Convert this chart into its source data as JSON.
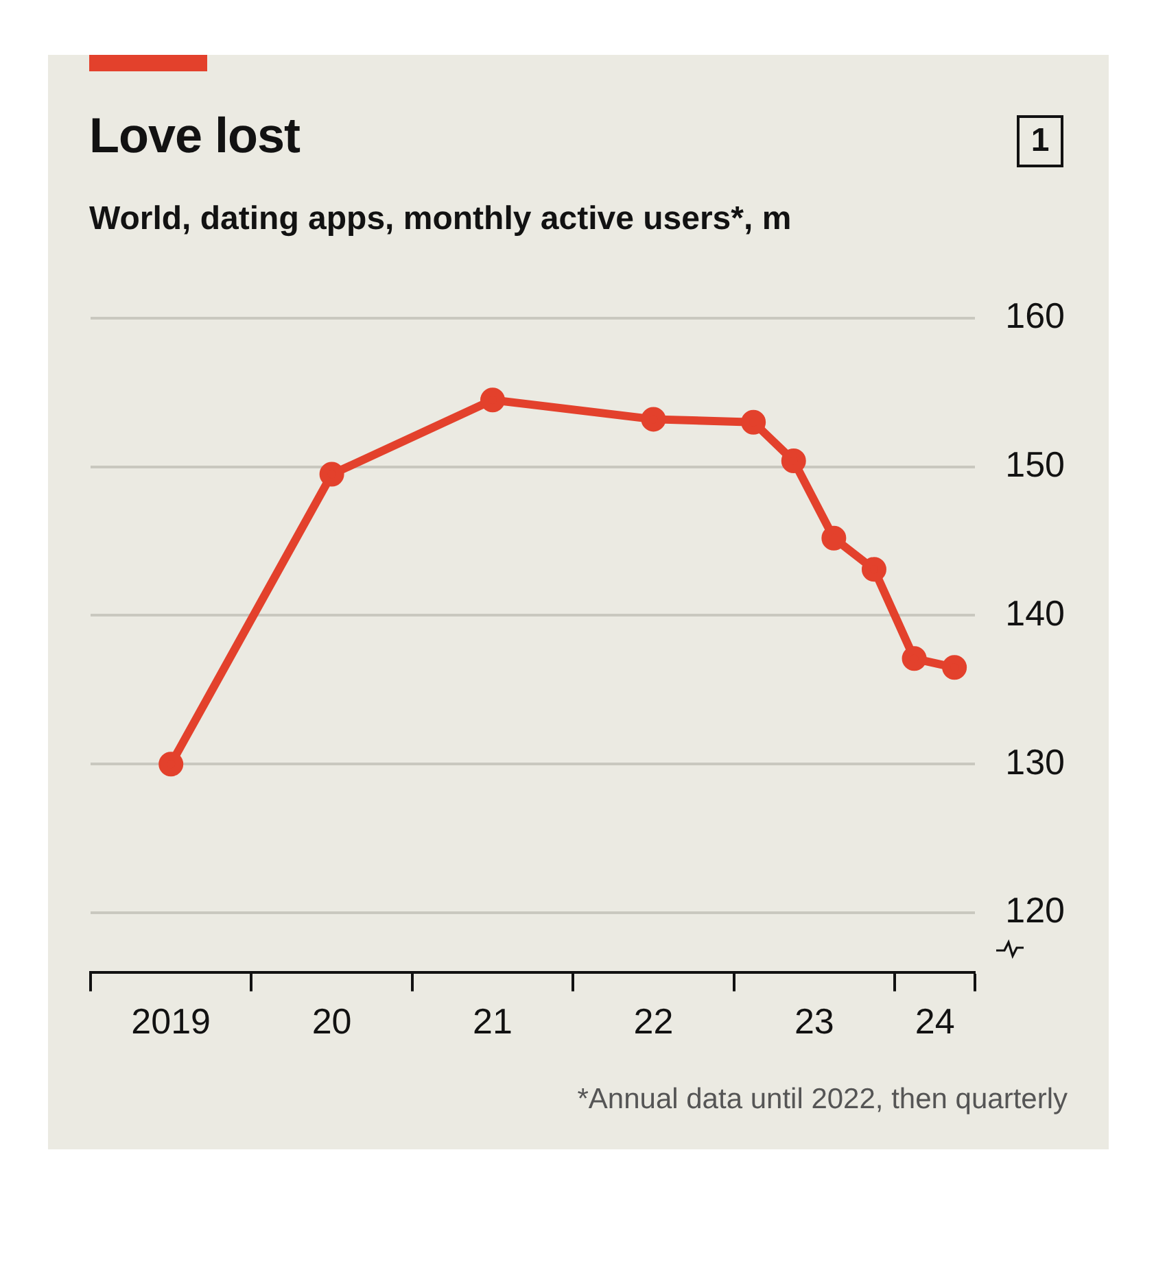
{
  "chart_data": {
    "type": "line",
    "title": "Love lost",
    "subtitle": "World, dating apps, monthly active users*, m",
    "x": [
      "2019-07",
      "2020-07",
      "2021-07",
      "2022-07",
      "2023-02-15",
      "2023-05-15",
      "2023-08-15",
      "2023-11-15",
      "2024-02-15",
      "2024-05-15"
    ],
    "series": [
      {
        "color": "#e3412c",
        "values": [
          130,
          149.5,
          154.5,
          153.2,
          153,
          150.4,
          145.2,
          143.1,
          137.1,
          136.5
        ]
      }
    ],
    "xlim": [
      "2019",
      "2024-07"
    ],
    "xticks": [
      {
        "value": "2019",
        "label": null
      },
      {
        "value": "2019-07",
        "label": "2019"
      },
      {
        "value": "2020",
        "label": null
      },
      {
        "value": "2020-07",
        "label": "20"
      },
      {
        "value": "2021",
        "label": null
      },
      {
        "value": "2021-07",
        "label": "21"
      },
      {
        "value": "2022",
        "label": null
      },
      {
        "value": "2022-07",
        "label": "22"
      },
      {
        "value": "2023",
        "label": null
      },
      {
        "value": "2023-07",
        "label": "23"
      },
      {
        "value": "2024",
        "label": null
      },
      {
        "value": "2024-04",
        "label": "24"
      },
      {
        "value": "2024-07",
        "label": null
      }
    ],
    "ylim": [
      116,
      160
    ],
    "yticks": [
      120,
      130,
      140,
      150,
      160
    ],
    "grid": "y",
    "legend": false,
    "marker": "circle",
    "line_style": "solid",
    "annotations": [
      "*Annual data until 2022, then quarterly",
      "1"
    ]
  }
}
